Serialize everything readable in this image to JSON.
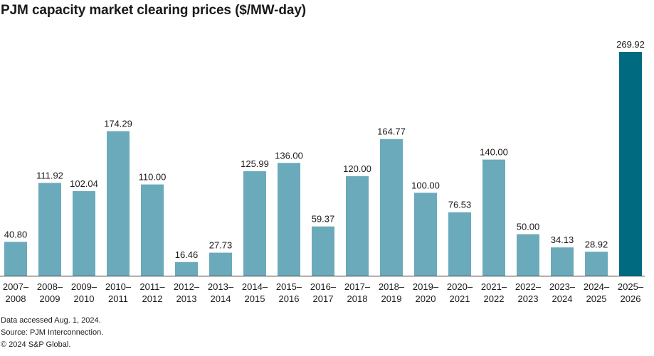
{
  "chart_data": {
    "type": "bar",
    "title": "PJM capacity market clearing prices ($/MW-day)",
    "categories": [
      [
        "2007–",
        "2008"
      ],
      [
        "2008–",
        "2009"
      ],
      [
        "2009–",
        "2010"
      ],
      [
        "2010–",
        "2011"
      ],
      [
        "2011–",
        "2012"
      ],
      [
        "2012–",
        "2013"
      ],
      [
        "2013–",
        "2014"
      ],
      [
        "2014–",
        "2015"
      ],
      [
        "2015–",
        "2016"
      ],
      [
        "2016–",
        "2017"
      ],
      [
        "2017–",
        "2018"
      ],
      [
        "2018–",
        "2019"
      ],
      [
        "2019–",
        "2020"
      ],
      [
        "2020–",
        "2021"
      ],
      [
        "2021–",
        "2022"
      ],
      [
        "2022–",
        "2023"
      ],
      [
        "2023–",
        "2024"
      ],
      [
        "2024–",
        "2025"
      ],
      [
        "2025–",
        "2026"
      ]
    ],
    "values": [
      40.8,
      111.92,
      102.04,
      174.29,
      110.0,
      16.46,
      27.73,
      125.99,
      136.0,
      59.37,
      120.0,
      164.77,
      100.0,
      76.53,
      140.0,
      50.0,
      34.13,
      28.92,
      269.92
    ],
    "value_labels": [
      "40.80",
      "111.92",
      "102.04",
      "174.29",
      "110.00",
      "16.46",
      "27.73",
      "125.99",
      "136.00",
      "59.37",
      "120.00",
      "164.77",
      "100.00",
      "76.53",
      "140.00",
      "50.00",
      "34.13",
      "28.92",
      "269.92"
    ],
    "highlight_index": 18,
    "ylim": [
      0,
      269.92
    ],
    "grid": false,
    "xlabel": "",
    "ylabel": ""
  },
  "colors": {
    "bar": "#6aaabb",
    "highlight_bar": "#006a80",
    "axis": "#333333"
  },
  "notes": {
    "accessed": "Data accessed Aug. 1, 2024.",
    "source": "Source: PJM Interconnection.",
    "copyright": "© 2024 S&P Global."
  }
}
